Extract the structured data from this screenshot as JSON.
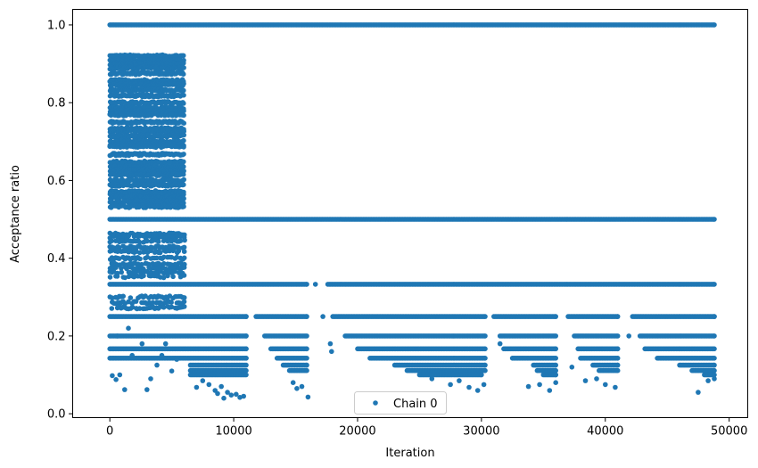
{
  "chart_data": {
    "type": "scatter",
    "xlabel": "Iteration",
    "ylabel": "Acceptance ratio",
    "xlim": [
      -3000,
      51500
    ],
    "ylim": [
      -0.01,
      1.04
    ],
    "xticks": [
      0,
      10000,
      20000,
      30000,
      40000,
      50000
    ],
    "xtick_labels": [
      "0",
      "10000",
      "20000",
      "30000",
      "40000",
      "50000"
    ],
    "yticks": [
      0.0,
      0.2,
      0.4,
      0.6,
      0.8,
      1.0
    ],
    "ytick_labels": [
      "0.0",
      "0.2",
      "0.4",
      "0.6",
      "0.8",
      "1.0"
    ],
    "grid": false,
    "legend_position": "lower-center",
    "marker_color": "#1f77b4",
    "series": [
      {
        "name": "Chain 0",
        "x_max": 48800,
        "phase_change_iteration": 6000,
        "levels": [
          {
            "value": 1.0,
            "ranges": [
              [
                0,
                48800
              ]
            ]
          },
          {
            "value": 0.5,
            "ranges": [
              [
                0,
                48800
              ]
            ]
          },
          {
            "value": 0.333,
            "ranges": [
              [
                0,
                15900
              ],
              [
                16600,
                16600
              ],
              [
                17600,
                48800
              ]
            ]
          },
          {
            "value": 0.25,
            "ranges": [
              [
                0,
                11000
              ],
              [
                11800,
                15900
              ],
              [
                18000,
                30300
              ],
              [
                31000,
                36000
              ],
              [
                37000,
                41000
              ],
              [
                42200,
                48800
              ]
            ]
          },
          {
            "value": 0.2,
            "ranges": [
              [
                0,
                11000
              ],
              [
                12500,
                15900
              ],
              [
                19000,
                30300
              ],
              [
                31500,
                36000
              ],
              [
                37500,
                41000
              ],
              [
                42800,
                48800
              ]
            ]
          },
          {
            "value": 0.167,
            "ranges": [
              [
                0,
                11000
              ],
              [
                13000,
                15900
              ],
              [
                20000,
                30300
              ],
              [
                31800,
                36000
              ],
              [
                37800,
                41000
              ],
              [
                43200,
                48800
              ]
            ]
          },
          {
            "value": 0.143,
            "ranges": [
              [
                0,
                11000
              ],
              [
                13500,
                15900
              ],
              [
                21000,
                30300
              ],
              [
                32500,
                36000
              ],
              [
                38000,
                41000
              ],
              [
                44200,
                48800
              ]
            ]
          },
          {
            "value": 0.125,
            "ranges": [
              [
                6500,
                11000
              ],
              [
                14000,
                15900
              ],
              [
                23000,
                30300
              ],
              [
                34200,
                36000
              ],
              [
                39000,
                41000
              ],
              [
                46000,
                48800
              ]
            ]
          },
          {
            "value": 0.111,
            "ranges": [
              [
                6500,
                11000
              ],
              [
                14500,
                15900
              ],
              [
                24000,
                30300
              ],
              [
                34500,
                36000
              ],
              [
                39500,
                41000
              ],
              [
                47000,
                48800
              ]
            ]
          },
          {
            "value": 0.1,
            "ranges": [
              [
                6500,
                11000
              ],
              [
                25000,
                30000
              ],
              [
                35000,
                36000
              ],
              [
                48000,
                48800
              ]
            ]
          }
        ],
        "early_phase_levels": [
          0.92,
          0.909,
          0.9,
          0.889,
          0.875,
          0.857,
          0.846,
          0.833,
          0.818,
          0.8,
          0.786,
          0.778,
          0.769,
          0.75,
          0.733,
          0.727,
          0.714,
          0.7,
          0.692,
          0.688,
          0.667,
          0.647,
          0.636,
          0.625,
          0.615,
          0.6,
          0.588,
          0.571,
          0.563,
          0.556,
          0.545,
          0.533,
          0.462,
          0.455,
          0.444,
          0.429,
          0.417,
          0.4,
          0.385,
          0.375,
          0.364,
          0.353,
          0.3,
          0.286,
          0.273
        ],
        "scattered_points": [
          [
            200,
            0.098
          ],
          [
            500,
            0.088
          ],
          [
            800,
            0.1
          ],
          [
            1200,
            0.062
          ],
          [
            1800,
            0.15
          ],
          [
            2600,
            0.18
          ],
          [
            3000,
            0.062
          ],
          [
            3300,
            0.09
          ],
          [
            3800,
            0.125
          ],
          [
            4200,
            0.15
          ],
          [
            4500,
            0.18
          ],
          [
            5000,
            0.11
          ],
          [
            5400,
            0.14
          ],
          [
            600,
            0.2
          ],
          [
            1500,
            0.22
          ],
          [
            2200,
            0.27
          ],
          [
            7000,
            0.068
          ],
          [
            7500,
            0.085
          ],
          [
            8000,
            0.075
          ],
          [
            8500,
            0.06
          ],
          [
            9000,
            0.07
          ],
          [
            9500,
            0.055
          ],
          [
            9800,
            0.048
          ],
          [
            10200,
            0.05
          ],
          [
            10500,
            0.042
          ],
          [
            10800,
            0.045
          ],
          [
            9200,
            0.04
          ],
          [
            8700,
            0.052
          ],
          [
            14800,
            0.08
          ],
          [
            15100,
            0.065
          ],
          [
            15500,
            0.07
          ],
          [
            16000,
            0.043
          ],
          [
            17800,
            0.18
          ],
          [
            26000,
            0.09
          ],
          [
            27500,
            0.075
          ],
          [
            28200,
            0.085
          ],
          [
            29000,
            0.068
          ],
          [
            29700,
            0.06
          ],
          [
            30200,
            0.075
          ],
          [
            33800,
            0.07
          ],
          [
            34700,
            0.075
          ],
          [
            35500,
            0.06
          ],
          [
            36000,
            0.08
          ],
          [
            38400,
            0.085
          ],
          [
            39300,
            0.09
          ],
          [
            40000,
            0.075
          ],
          [
            40800,
            0.068
          ],
          [
            47500,
            0.055
          ],
          [
            48300,
            0.085
          ],
          [
            48800,
            0.09
          ],
          [
            41900,
            0.2
          ],
          [
            37300,
            0.12
          ],
          [
            31500,
            0.18
          ],
          [
            17200,
            0.25
          ],
          [
            17900,
            0.16
          ]
        ]
      }
    ]
  }
}
